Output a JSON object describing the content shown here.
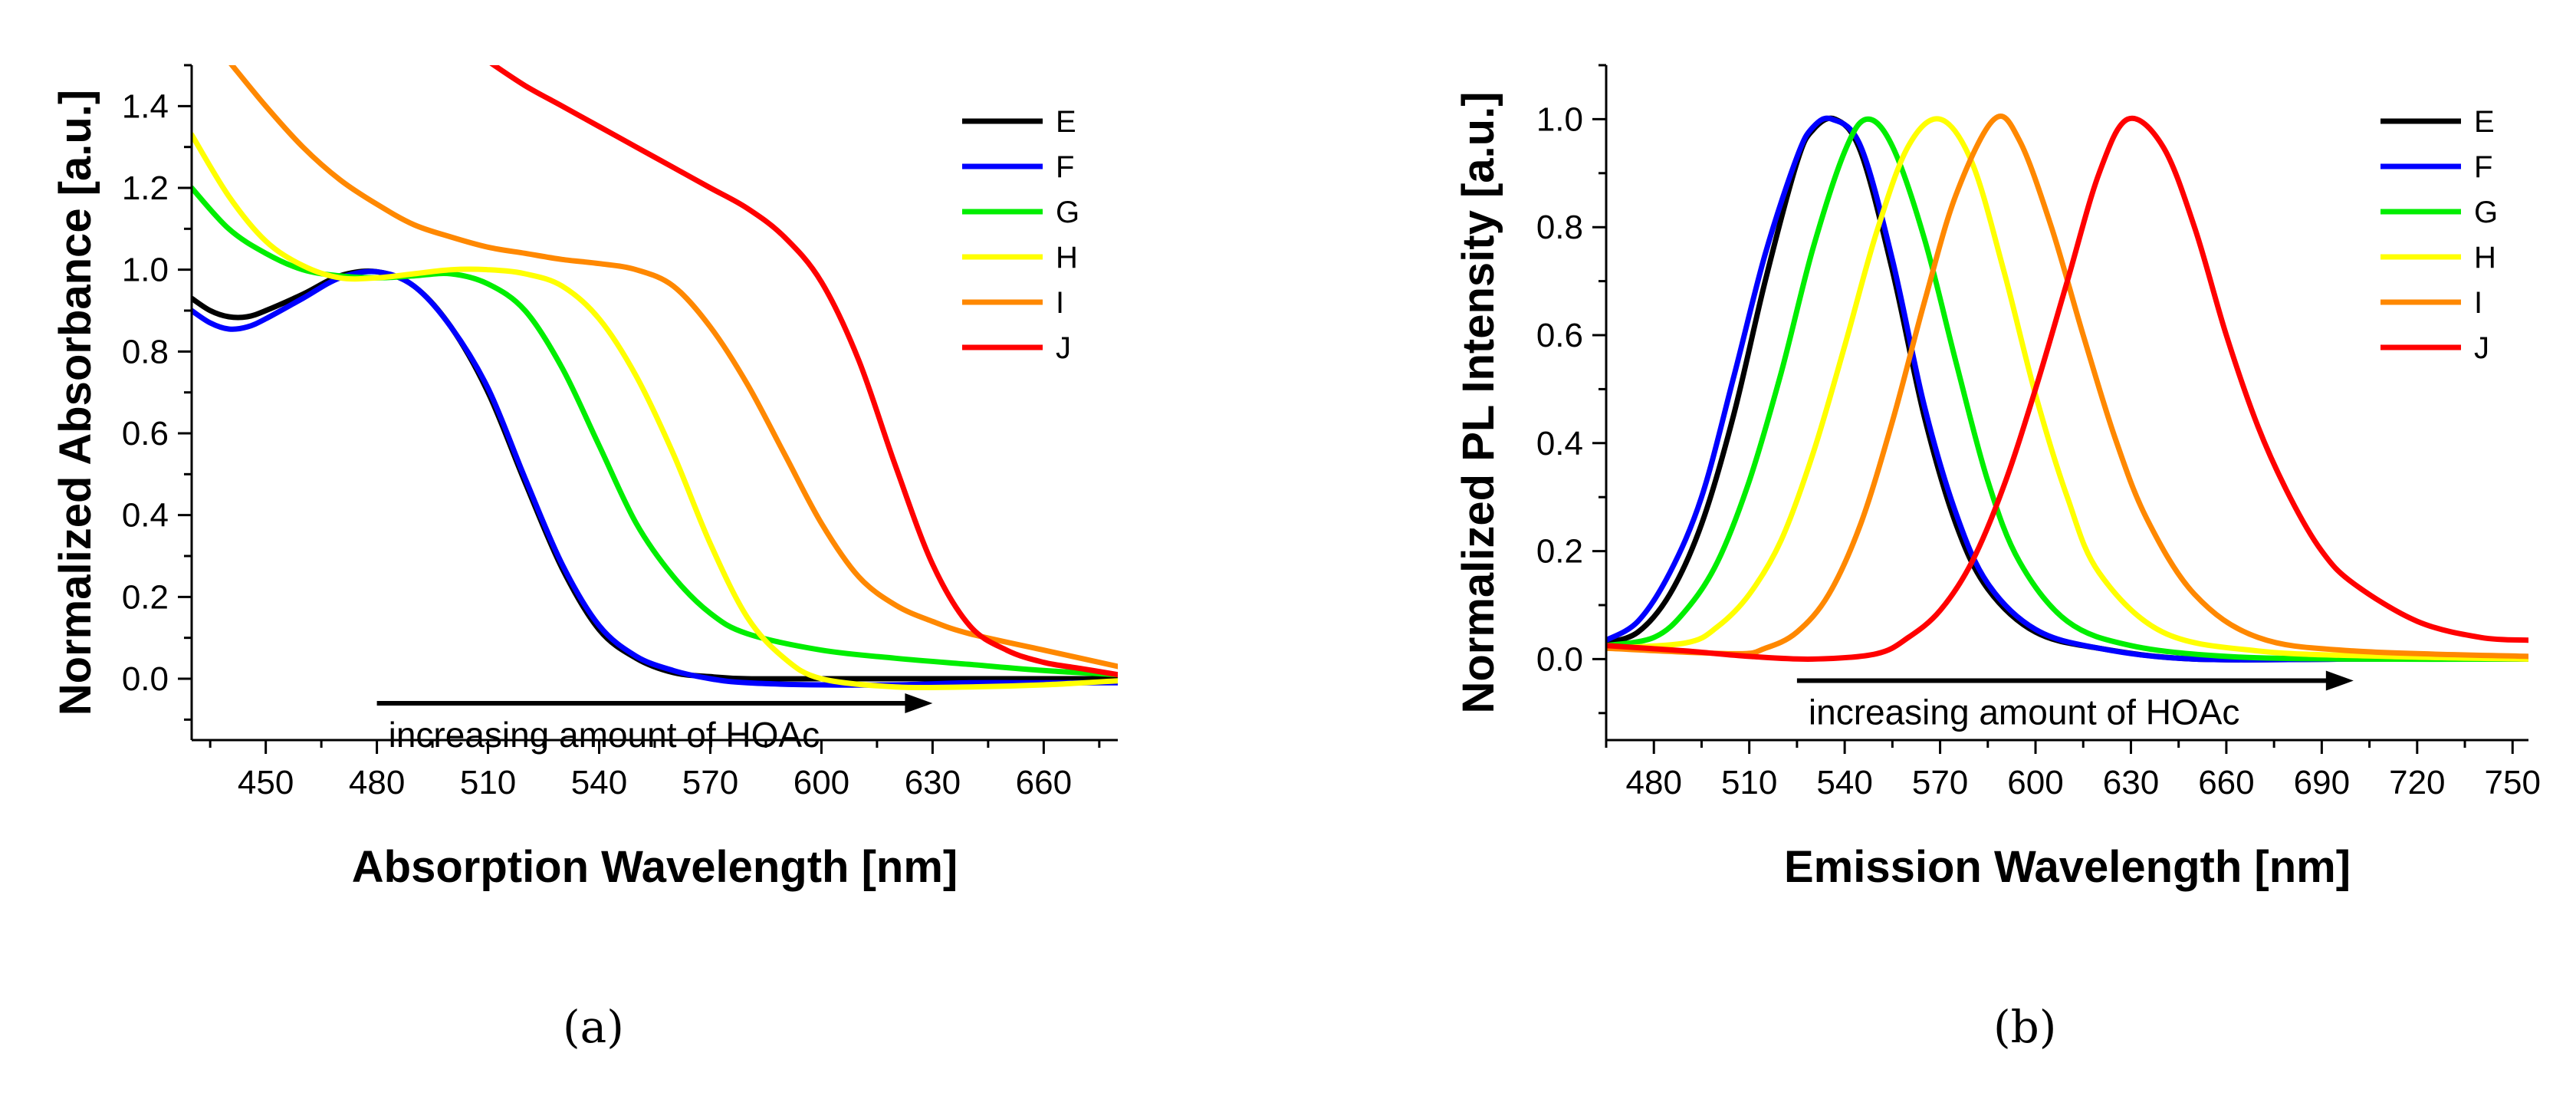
{
  "chart_data": [
    {
      "panel": "(a)",
      "type": "line",
      "xlabel": "Absorption Wavelength [nm]",
      "ylabel": "Normalized Absorbance [a.u.]",
      "xlim": [
        430,
        680
      ],
      "ylim": [
        -0.15,
        1.5
      ],
      "xticks": [
        450,
        480,
        510,
        540,
        570,
        600,
        630,
        660
      ],
      "yticks": [
        0.0,
        0.2,
        0.4,
        0.6,
        0.8,
        1.0,
        1.2,
        1.4
      ],
      "annotation": "increasing amount of HOAc",
      "arrow": {
        "x_start": 480,
        "x_end": 630,
        "y": -0.06
      },
      "legend_position": "top-right",
      "series": [
        {
          "name": "E",
          "color": "#000000",
          "x": [
            430,
            435,
            440,
            445,
            450,
            460,
            470,
            480,
            490,
            500,
            510,
            520,
            530,
            540,
            550,
            560,
            570,
            580,
            600,
            620,
            640,
            660,
            680
          ],
          "y": [
            0.93,
            0.9,
            0.885,
            0.885,
            0.9,
            0.94,
            0.985,
            0.995,
            0.96,
            0.86,
            0.7,
            0.48,
            0.27,
            0.12,
            0.05,
            0.015,
            0.005,
            0.0,
            0.0,
            0.0,
            0.0,
            0.0,
            0.0
          ]
        },
        {
          "name": "F",
          "color": "#0000ff",
          "x": [
            430,
            435,
            440,
            445,
            450,
            460,
            470,
            480,
            490,
            500,
            510,
            520,
            530,
            540,
            550,
            560,
            570,
            580,
            600,
            620,
            640,
            660,
            680
          ],
          "y": [
            0.9,
            0.87,
            0.855,
            0.86,
            0.88,
            0.93,
            0.98,
            0.995,
            0.96,
            0.86,
            0.71,
            0.49,
            0.28,
            0.13,
            0.055,
            0.02,
            0.0,
            -0.01,
            -0.015,
            -0.015,
            -0.01,
            -0.01,
            -0.01
          ]
        },
        {
          "name": "G",
          "color": "#00ee00",
          "x": [
            430,
            440,
            450,
            460,
            470,
            480,
            490,
            500,
            510,
            520,
            530,
            540,
            550,
            560,
            570,
            580,
            600,
            620,
            640,
            660,
            680
          ],
          "y": [
            1.2,
            1.1,
            1.04,
            1.0,
            0.985,
            0.98,
            0.985,
            0.99,
            0.965,
            0.9,
            0.76,
            0.57,
            0.38,
            0.25,
            0.16,
            0.11,
            0.07,
            0.05,
            0.035,
            0.02,
            0.01
          ]
        },
        {
          "name": "H",
          "color": "#ffff00",
          "x": [
            430,
            440,
            450,
            460,
            470,
            480,
            490,
            500,
            510,
            520,
            530,
            540,
            550,
            560,
            570,
            580,
            590,
            600,
            620,
            640,
            660,
            680
          ],
          "y": [
            1.33,
            1.18,
            1.07,
            1.01,
            0.98,
            0.98,
            0.99,
            1.0,
            1.0,
            0.99,
            0.96,
            0.88,
            0.74,
            0.55,
            0.33,
            0.15,
            0.05,
            0.0,
            -0.02,
            -0.02,
            -0.015,
            -0.005
          ]
        },
        {
          "name": "I",
          "color": "#ff8800",
          "x": [
            440,
            450,
            460,
            470,
            480,
            490,
            500,
            510,
            520,
            530,
            540,
            550,
            560,
            570,
            580,
            590,
            600,
            610,
            620,
            630,
            640,
            660,
            680
          ],
          "y": [
            1.51,
            1.4,
            1.3,
            1.22,
            1.16,
            1.11,
            1.08,
            1.055,
            1.04,
            1.025,
            1.015,
            1.0,
            0.96,
            0.86,
            0.72,
            0.55,
            0.38,
            0.25,
            0.18,
            0.14,
            0.11,
            0.07,
            0.03
          ]
        },
        {
          "name": "J",
          "color": "#ff0000",
          "x": [
            510,
            520,
            530,
            540,
            550,
            560,
            570,
            580,
            590,
            600,
            610,
            620,
            630,
            640,
            650,
            660,
            670,
            680
          ],
          "y": [
            1.51,
            1.45,
            1.4,
            1.35,
            1.3,
            1.25,
            1.2,
            1.15,
            1.08,
            0.97,
            0.78,
            0.52,
            0.28,
            0.13,
            0.07,
            0.04,
            0.025,
            0.01
          ]
        }
      ]
    },
    {
      "panel": "(b)",
      "type": "line",
      "xlabel": "Emission Wavelength [nm]",
      "ylabel": "Normalized PL Intensity [a.u.]",
      "xlim": [
        465,
        755
      ],
      "ylim": [
        -0.15,
        1.1
      ],
      "xticks": [
        480,
        510,
        540,
        570,
        600,
        630,
        660,
        690,
        720,
        750
      ],
      "yticks": [
        0.0,
        0.2,
        0.4,
        0.6,
        0.8,
        1.0
      ],
      "annotation": "increasing amount of HOAc",
      "arrow": {
        "x_start": 525,
        "x_end": 700,
        "y": -0.04
      },
      "legend_position": "top-right",
      "series": [
        {
          "name": "E",
          "color": "#000000",
          "x": [
            465,
            475,
            485,
            495,
            505,
            515,
            525,
            530,
            537,
            545,
            555,
            565,
            575,
            585,
            600,
            620,
            650,
            700,
            755
          ],
          "y": [
            0.03,
            0.05,
            0.12,
            0.25,
            0.45,
            0.7,
            0.92,
            0.98,
            1.0,
            0.94,
            0.72,
            0.45,
            0.25,
            0.13,
            0.05,
            0.02,
            0.0,
            0.0,
            0.0
          ]
        },
        {
          "name": "F",
          "color": "#0000ff",
          "x": [
            465,
            475,
            485,
            495,
            505,
            515,
            525,
            530,
            536,
            545,
            555,
            565,
            575,
            585,
            600,
            620,
            650,
            700,
            755
          ],
          "y": [
            0.035,
            0.07,
            0.16,
            0.3,
            0.52,
            0.75,
            0.93,
            0.985,
            1.0,
            0.95,
            0.74,
            0.47,
            0.27,
            0.14,
            0.055,
            0.02,
            0.0,
            0.0,
            0.0
          ]
        },
        {
          "name": "G",
          "color": "#00ee00",
          "x": [
            465,
            480,
            490,
            500,
            510,
            520,
            530,
            540,
            547,
            555,
            565,
            575,
            585,
            595,
            610,
            630,
            660,
            700,
            755
          ],
          "y": [
            0.025,
            0.04,
            0.09,
            0.18,
            0.33,
            0.53,
            0.76,
            0.94,
            1.0,
            0.95,
            0.78,
            0.55,
            0.33,
            0.18,
            0.07,
            0.025,
            0.005,
            0.0,
            0.0
          ]
        },
        {
          "name": "H",
          "color": "#ffff00",
          "x": [
            465,
            490,
            500,
            510,
            520,
            530,
            540,
            550,
            560,
            570,
            580,
            590,
            600,
            610,
            620,
            640,
            670,
            710,
            755
          ],
          "y": [
            0.02,
            0.03,
            0.06,
            0.12,
            0.22,
            0.38,
            0.58,
            0.79,
            0.95,
            1.0,
            0.92,
            0.72,
            0.49,
            0.3,
            0.16,
            0.05,
            0.015,
            0.005,
            0.0
          ]
        },
        {
          "name": "I",
          "color": "#ff8800",
          "x": [
            465,
            505,
            515,
            525,
            535,
            545,
            555,
            565,
            575,
            587,
            595,
            605,
            615,
            625,
            635,
            650,
            670,
            700,
            755
          ],
          "y": [
            0.02,
            0.01,
            0.02,
            0.05,
            0.12,
            0.25,
            0.44,
            0.66,
            0.86,
            1.0,
            0.96,
            0.8,
            0.6,
            0.41,
            0.26,
            0.12,
            0.04,
            0.015,
            0.005
          ]
        },
        {
          "name": "J",
          "color": "#ff0000",
          "x": [
            465,
            490,
            510,
            530,
            550,
            560,
            570,
            580,
            590,
            600,
            610,
            620,
            629,
            640,
            650,
            660,
            670,
            680,
            690,
            700,
            720,
            740,
            755
          ],
          "y": [
            0.025,
            0.015,
            0.005,
            0.0,
            0.01,
            0.04,
            0.09,
            0.18,
            0.32,
            0.5,
            0.7,
            0.9,
            1.0,
            0.95,
            0.8,
            0.6,
            0.43,
            0.3,
            0.2,
            0.14,
            0.07,
            0.04,
            0.035
          ]
        }
      ]
    }
  ],
  "panel_labels": {
    "a": "(a)",
    "b": "(b)"
  }
}
